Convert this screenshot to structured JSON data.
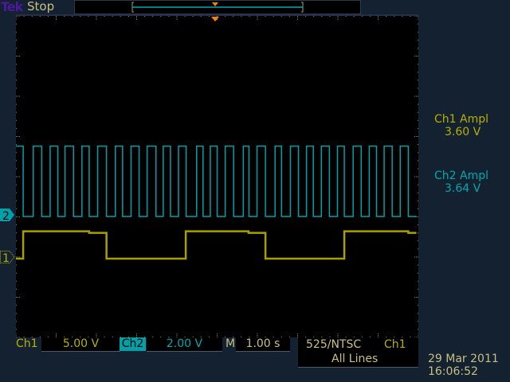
{
  "header": {
    "brand": "Tek",
    "run_state": "Stop"
  },
  "measurements": [
    {
      "label": "Ch1 Ampl",
      "value": "3.60 V",
      "color": "#c8c000"
    },
    {
      "label": "Ch2 Ampl",
      "value": "3.64 V",
      "color": "#00a8b0"
    }
  ],
  "channel_markers": {
    "ch1": "1",
    "ch2": "2"
  },
  "footer": {
    "ch1_label": "Ch1",
    "ch1_scale": "5.00 V",
    "ch2_label": "Ch2",
    "ch2_scale": "2.00 V",
    "timebase_label": "M",
    "timebase": "1.00 s",
    "trigger_source_line1": "525/NTSC",
    "trigger_channel": "Ch1",
    "trigger_source_line2": "All Lines",
    "date": "29 Mar  2011",
    "time": "16:06:52"
  },
  "colors": {
    "ch1": "#a8a000",
    "ch2": "#00a0a8",
    "trigger": "#ff8000",
    "background": "#132131"
  },
  "chart_data": {
    "type": "line",
    "x_unit": "s",
    "x_per_div": 1.0,
    "xlim": [
      0,
      10
    ],
    "grid": false,
    "series": [
      {
        "name": "Ch1",
        "volts_per_div": 5.0,
        "edges": [
          [
            0,
            0
          ],
          [
            0.18,
            3.4
          ],
          [
            1.82,
            3.2
          ],
          [
            2.25,
            0
          ],
          [
            4.22,
            3.4
          ],
          [
            5.78,
            3.2
          ],
          [
            6.2,
            0
          ],
          [
            8.16,
            3.4
          ],
          [
            9.75,
            3.2
          ]
        ]
      },
      {
        "name": "Ch2",
        "volts_per_div": 2.0,
        "high": 3.5,
        "low": 0,
        "initial": "high",
        "toggles": [
          0.18,
          0.43,
          0.64,
          0.85,
          1.04,
          1.22,
          1.43,
          1.64,
          1.82,
          2.03,
          2.25,
          2.47,
          2.65,
          2.86,
          3.06,
          3.26,
          3.48,
          3.66,
          3.84,
          4.04,
          4.23,
          4.49,
          4.65,
          4.83,
          5.0,
          5.2,
          5.41,
          5.65,
          5.79,
          5.99,
          6.2,
          6.44,
          6.6,
          6.82,
          7.02,
          7.22,
          7.39,
          7.59,
          7.79,
          7.99,
          8.16,
          8.38,
          8.58,
          8.78,
          8.96,
          9.15,
          9.35,
          9.55,
          9.75
        ]
      }
    ]
  }
}
